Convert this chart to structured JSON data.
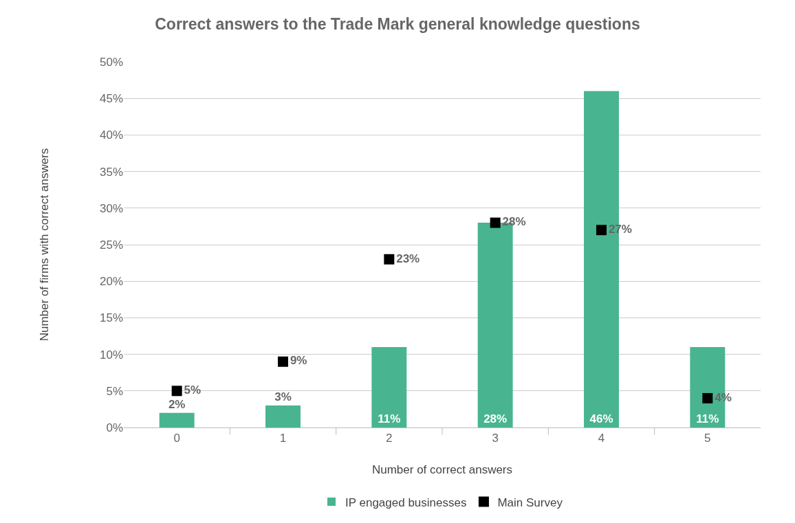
{
  "chart_data": {
    "type": "bar",
    "title": "Correct answers to the Trade Mark general knowledge questions",
    "xlabel": "Number of correct answers",
    "ylabel": "Number of firms with correct answers",
    "categories": [
      "0",
      "1",
      "2",
      "3",
      "4",
      "5"
    ],
    "series": [
      {
        "name": "IP engaged businesses",
        "type": "bar",
        "color": "#48b590",
        "values": [
          2,
          3,
          11,
          28,
          46,
          11
        ],
        "value_labels": [
          "2%",
          "3%",
          "11%",
          "28%",
          "46%",
          "11%"
        ]
      },
      {
        "name": "Main Survey",
        "type": "scatter",
        "color": "#000000",
        "marker": "square",
        "x": [
          "0",
          "1",
          "2",
          "3",
          "4",
          "5"
        ],
        "values": [
          5,
          9,
          23,
          28,
          27,
          4
        ],
        "value_labels": [
          "5%",
          "9%",
          "23%",
          "28%",
          "27%",
          "4%"
        ]
      }
    ],
    "ylim": [
      0,
      50
    ],
    "yticks": [
      {
        "value": 0,
        "label": "0%"
      },
      {
        "value": 5,
        "label": "5%"
      },
      {
        "value": 10,
        "label": "10%"
      },
      {
        "value": 15,
        "label": "15%"
      },
      {
        "value": 20,
        "label": "20%"
      },
      {
        "value": 25,
        "label": "25%"
      },
      {
        "value": 30,
        "label": "30%"
      },
      {
        "value": 35,
        "label": "35%"
      },
      {
        "value": 40,
        "label": "40%"
      },
      {
        "value": 45,
        "label": "45%"
      },
      {
        "value": 50,
        "label": "50%"
      }
    ],
    "grid": "y",
    "legend": "bottom"
  }
}
